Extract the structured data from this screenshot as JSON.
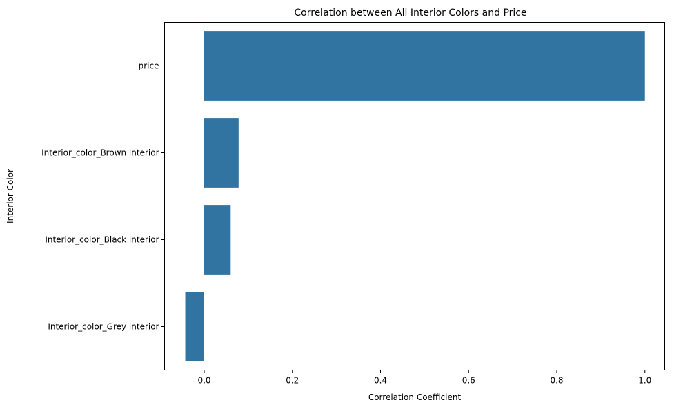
{
  "chart_data": {
    "type": "bar",
    "orientation": "horizontal",
    "title": "Correlation between All Interior Colors and Price",
    "xlabel": "Correlation Coefficient",
    "ylabel": "Interior Color",
    "categories": [
      "price",
      "Interior_color_Brown interior",
      "Interior_color_Black interior",
      "Interior_color_Grey interior"
    ],
    "values": [
      1.0,
      0.078,
      0.06,
      -0.043
    ],
    "xlim": [
      -0.09,
      1.045
    ],
    "xticks": [
      0.0,
      0.2,
      0.4,
      0.6,
      0.8,
      1.0
    ],
    "xtick_labels": [
      "0.0",
      "0.2",
      "0.4",
      "0.6",
      "0.8",
      "1.0"
    ],
    "bar_color": "#3274a1",
    "grid": false
  }
}
